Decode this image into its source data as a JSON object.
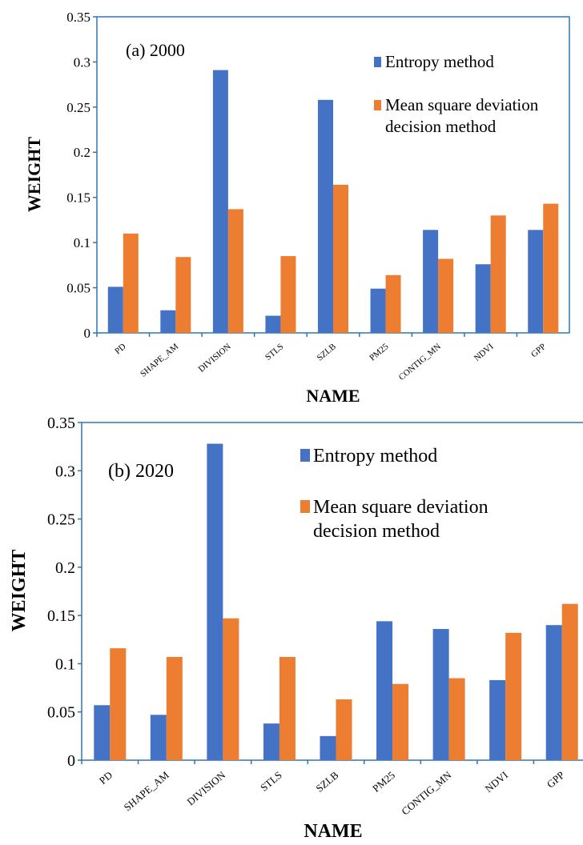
{
  "chart_data": [
    {
      "type": "bar",
      "panel_label": "(a) 2000",
      "xlabel": "NAME",
      "ylabel": "WEIGHT",
      "ylim": [
        0,
        0.35
      ],
      "yticks": [
        "0",
        "0.05",
        "0.1",
        "0.15",
        "0.2",
        "0.25",
        "0.3",
        "0.35"
      ],
      "categories": [
        "PD",
        "SHAPE_AM",
        "DIVISION",
        "STLS",
        "SZLB",
        "PM25",
        "CONTIG_MN",
        "NDVI",
        "GPP"
      ],
      "series": [
        {
          "name": "Entropy method",
          "color": "#4472C4",
          "values": [
            0.051,
            0.025,
            0.291,
            0.019,
            0.258,
            0.049,
            0.114,
            0.076,
            0.114
          ]
        },
        {
          "name": "Mean square deviation decision method",
          "color": "#ED7D31",
          "values": [
            0.11,
            0.084,
            0.137,
            0.085,
            0.164,
            0.064,
            0.082,
            0.13,
            0.143
          ]
        }
      ],
      "legend": {
        "entropy_label": "Entropy method",
        "msd_line1": "Mean square deviation",
        "msd_line2": "decision method"
      },
      "grid": false
    },
    {
      "type": "bar",
      "panel_label": "(b) 2020",
      "xlabel": "NAME",
      "ylabel": "WEIGHT",
      "ylim": [
        0,
        0.35
      ],
      "yticks": [
        "0",
        "0.05",
        "0.1",
        "0.15",
        "0.2",
        "0.25",
        "0.3",
        "0.35"
      ],
      "categories": [
        "PD",
        "SHAPE_AM",
        "DIVISION",
        "STLS",
        "SZLB",
        "PM25",
        "CONTIG_MN",
        "NDVI",
        "GPP"
      ],
      "series": [
        {
          "name": "Entropy method",
          "color": "#4472C4",
          "values": [
            0.057,
            0.047,
            0.328,
            0.038,
            0.025,
            0.144,
            0.136,
            0.083,
            0.14
          ]
        },
        {
          "name": "Mean square deviation decision method",
          "color": "#ED7D31",
          "values": [
            0.116,
            0.107,
            0.147,
            0.107,
            0.063,
            0.079,
            0.085,
            0.132,
            0.162
          ]
        }
      ],
      "legend": {
        "entropy_label": "Entropy method",
        "msd_line1": "Mean square deviation",
        "msd_line2": "decision method"
      },
      "grid": false
    }
  ]
}
